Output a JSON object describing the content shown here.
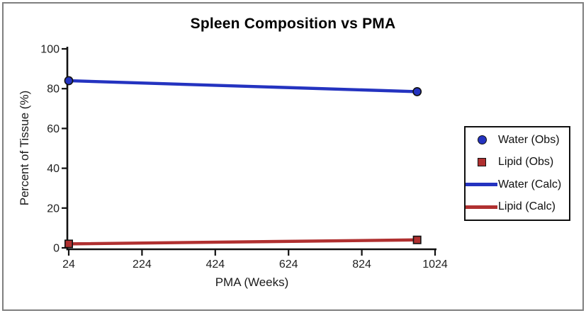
{
  "frame": {
    "border_color": "#7f7f7f",
    "background": "#ffffff"
  },
  "chart_data": {
    "type": "line",
    "title": "Spleen Composition vs PMA",
    "xlabel": "PMA (Weeks)",
    "ylabel": "Percent of Tissue (%)",
    "xlim": [
      24,
      1024
    ],
    "ylim": [
      0,
      100
    ],
    "x_ticks": [
      24,
      224,
      424,
      624,
      824,
      1024
    ],
    "y_ticks": [
      0,
      20,
      40,
      60,
      80,
      100
    ],
    "grid": false,
    "legend_position": "right",
    "axis_color": "#111111",
    "tick_text_color": "#1f1f1f",
    "series": [
      {
        "name": "Water (Obs)",
        "kind": "scatter",
        "marker": "circle",
        "color": "#2433c0",
        "x": [
          24,
          975
        ],
        "y": [
          84,
          78.5
        ]
      },
      {
        "name": "Lipid (Obs)",
        "kind": "scatter",
        "marker": "square",
        "color": "#b03030",
        "x": [
          24,
          975
        ],
        "y": [
          2,
          4
        ]
      },
      {
        "name": "Water (Calc)",
        "kind": "line",
        "color": "#2433c0",
        "x": [
          24,
          975
        ],
        "y": [
          84,
          78.5
        ]
      },
      {
        "name": "Lipid (Calc)",
        "kind": "line",
        "color": "#b03030",
        "x": [
          24,
          975
        ],
        "y": [
          2,
          4
        ]
      }
    ]
  }
}
